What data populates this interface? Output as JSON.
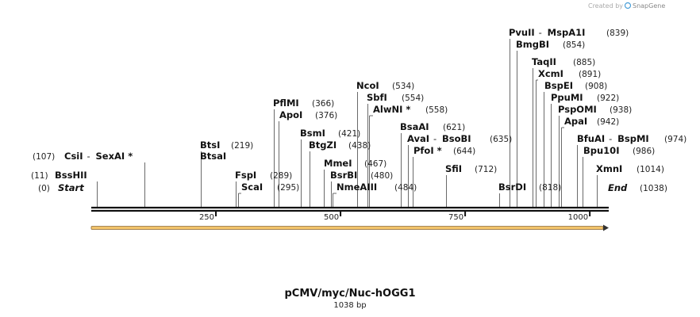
{
  "credit": {
    "prefix": "Created by",
    "brand": "SnapGene"
  },
  "map": {
    "title": "pCMV/myc/Nuc-hOGG1",
    "length_label": "1038 bp",
    "length": 1038,
    "start_label": "Start",
    "start_pos": 0,
    "end_label": "End",
    "end_pos": 1038,
    "ticks": [
      250,
      500,
      750,
      1000
    ],
    "feature_color": "#f2c46b"
  },
  "sites": [
    {
      "name": "BssHII",
      "pos": 11
    },
    {
      "name": "CsiI",
      "pos": 107,
      "partner": "SexAI *"
    },
    {
      "name": "BtsI",
      "pos": 219
    },
    {
      "name": "BtsaI",
      "pos": 219
    },
    {
      "name": "FspI",
      "pos": 289
    },
    {
      "name": "ScaI",
      "pos": 295
    },
    {
      "name": "PflMI",
      "pos": 366
    },
    {
      "name": "ApoI",
      "pos": 376
    },
    {
      "name": "BsmI",
      "pos": 421
    },
    {
      "name": "BtgZI",
      "pos": 438
    },
    {
      "name": "MmeI",
      "pos": 467
    },
    {
      "name": "BsrBI",
      "pos": 480
    },
    {
      "name": "NmeAIII",
      "pos": 484
    },
    {
      "name": "NcoI",
      "pos": 534
    },
    {
      "name": "SbfI",
      "pos": 554
    },
    {
      "name": "AlwNI *",
      "pos": 558
    },
    {
      "name": "BsaAI",
      "pos": 621
    },
    {
      "name": "AvaI",
      "pos": 635,
      "partner": "BsoBI"
    },
    {
      "name": "PfoI *",
      "pos": 644
    },
    {
      "name": "SfiI",
      "pos": 712
    },
    {
      "name": "BsrDI",
      "pos": 818
    },
    {
      "name": "PvuII",
      "pos": 839,
      "partner": "MspA1I"
    },
    {
      "name": "BmgBI",
      "pos": 854
    },
    {
      "name": "TaqII",
      "pos": 885
    },
    {
      "name": "XcmI",
      "pos": 891
    },
    {
      "name": "BspEI",
      "pos": 908
    },
    {
      "name": "PpuMI",
      "pos": 922
    },
    {
      "name": "PspOMI",
      "pos": 938
    },
    {
      "name": "ApaI",
      "pos": 942
    },
    {
      "name": "BfuAI",
      "pos": 974,
      "partner": "BspMI"
    },
    {
      "name": "Bpu10I",
      "pos": 986
    },
    {
      "name": "XmnI",
      "pos": 1014
    }
  ]
}
